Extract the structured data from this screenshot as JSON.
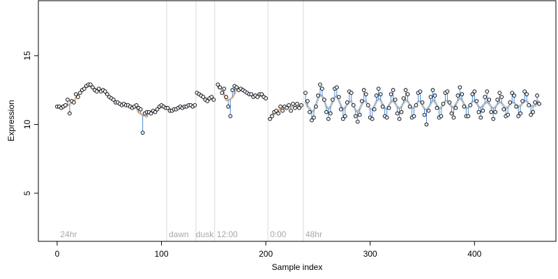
{
  "chart_data": {
    "type": "scatter",
    "xlabel": "Sample index",
    "ylabel": "Expression",
    "xlim": [
      -18,
      478
    ],
    "ylim": [
      1.5,
      19
    ],
    "x_ticks": [
      0,
      100,
      200,
      300,
      400
    ],
    "y_ticks": [
      5,
      10,
      15
    ],
    "grid": false,
    "phase_boundaries": [
      105,
      133,
      151,
      202,
      236
    ],
    "phase_labels": [
      {
        "text": "24hr",
        "x": 3
      },
      {
        "text": "dawn",
        "x": 107
      },
      {
        "text": "dusk",
        "x": 133
      },
      {
        "text": "12:00",
        "x": 153
      },
      {
        "text": "0:00",
        "x": 204
      },
      {
        "text": "48hr",
        "x": 238
      }
    ],
    "colors": {
      "point_fill": "#e8eff7",
      "point_stroke": "#000000",
      "fit_line": "#e8a060",
      "fit_line_alt": "#9aa7b0",
      "residual": "#4a8ad8",
      "boundary": "#d9d9d9",
      "phase_text": "#a8a8a8"
    },
    "series": [
      {
        "x": [
          0,
          2,
          4,
          6,
          8,
          10,
          12,
          14,
          16,
          18,
          20,
          22,
          24,
          26,
          28,
          30,
          32,
          34,
          36,
          38,
          40,
          42,
          44,
          46,
          48,
          50,
          52,
          54,
          56,
          58,
          60,
          62,
          64,
          66,
          68,
          70,
          72,
          74,
          76,
          78,
          80,
          82,
          84,
          86,
          88,
          90,
          92,
          94,
          96,
          98,
          100,
          102,
          104,
          106,
          108,
          110,
          112,
          114,
          116,
          118,
          120,
          122,
          124,
          126,
          128,
          130,
          132
        ],
        "y": [
          11.3,
          11.3,
          11.2,
          11.3,
          11.4,
          11.8,
          10.8,
          11.7,
          11.6,
          12.2,
          12.0,
          12.3,
          12.5,
          12.6,
          12.8,
          12.9,
          12.9,
          12.7,
          12.5,
          12.4,
          12.6,
          12.4,
          12.5,
          12.4,
          12.2,
          12.0,
          11.9,
          11.8,
          11.6,
          11.6,
          11.5,
          11.4,
          11.5,
          11.4,
          11.4,
          11.3,
          11.2,
          11.3,
          11.4,
          11.2,
          11.1,
          9.4,
          10.8,
          10.9,
          10.9,
          10.8,
          11.0,
          10.9,
          11.1,
          11.3,
          11.4,
          11.3,
          11.2,
          11.2,
          11.0,
          11.0,
          11.1,
          11.1,
          11.2,
          11.3,
          11.2,
          11.3,
          11.3,
          11.4,
          11.4,
          11.3,
          11.4
        ]
      },
      {
        "x": [
          134,
          136,
          138,
          140,
          142,
          144,
          146,
          148,
          150
        ],
        "y": [
          12.3,
          12.2,
          12.1,
          12.0,
          11.8,
          11.7,
          11.9,
          12.0,
          11.8
        ]
      },
      {
        "x": [
          154,
          156,
          158,
          160,
          162,
          164,
          166,
          168,
          170,
          172,
          174,
          176,
          178,
          180,
          182,
          184,
          186,
          188,
          190,
          192,
          194,
          196,
          198,
          200
        ],
        "y": [
          12.9,
          12.7,
          12.3,
          12.6,
          12.0,
          11.3,
          10.6,
          12.5,
          12.8,
          12.7,
          12.5,
          12.6,
          12.5,
          12.4,
          12.3,
          12.2,
          12.2,
          12.0,
          12.1,
          12.0,
          12.2,
          12.2,
          12.0,
          11.9
        ]
      },
      {
        "x": [
          204,
          206,
          208,
          210,
          212,
          214,
          216,
          218,
          220,
          222,
          224,
          226,
          228,
          230,
          232,
          234
        ],
        "y": [
          10.4,
          10.6,
          10.9,
          11.0,
          10.8,
          11.3,
          11.0,
          11.3,
          11.2,
          11.4,
          11.0,
          11.5,
          11.2,
          11.5,
          11.2,
          11.4
        ]
      },
      {
        "x": [
          238,
          240,
          242,
          244,
          246,
          248,
          250,
          252,
          254,
          256,
          258,
          260,
          262,
          264,
          266,
          268,
          270,
          272,
          274,
          276,
          278,
          280,
          282,
          284,
          286,
          288,
          290,
          292,
          294,
          296,
          298,
          300,
          302,
          304,
          306,
          308,
          310,
          312,
          314,
          316,
          318,
          320,
          322,
          324,
          326,
          328,
          330,
          332,
          334,
          336,
          338,
          340,
          342,
          344,
          346,
          348,
          350,
          352,
          354,
          356,
          358,
          360,
          362,
          364,
          366,
          368,
          370,
          372,
          374,
          376,
          378,
          380,
          382,
          384,
          386,
          388,
          390,
          392,
          394,
          396,
          398,
          400,
          402,
          404,
          406,
          408,
          410,
          412,
          414,
          416,
          418,
          420,
          422,
          424,
          426,
          428,
          430,
          432,
          434,
          436,
          438,
          440,
          442,
          444,
          446,
          448,
          450,
          452,
          454,
          456,
          458,
          460,
          462
        ],
        "y": [
          12.3,
          11.7,
          10.9,
          10.3,
          10.5,
          11.3,
          12.1,
          12.9,
          12.6,
          11.8,
          10.9,
          10.4,
          10.8,
          11.8,
          12.6,
          12.7,
          12.0,
          11.1,
          10.4,
          10.6,
          11.6,
          12.4,
          12.3,
          11.4,
          10.6,
          10.2,
          10.7,
          11.7,
          12.5,
          12.2,
          11.4,
          10.5,
          10.4,
          11.1,
          12.1,
          12.6,
          12.2,
          11.3,
          10.6,
          10.5,
          11.2,
          12.2,
          12.5,
          11.8,
          10.8,
          10.4,
          10.9,
          11.9,
          12.5,
          12.2,
          11.3,
          10.5,
          10.6,
          11.4,
          12.3,
          12.4,
          11.6,
          10.7,
          10.0,
          11.0,
          12.0,
          12.5,
          12.1,
          11.2,
          10.5,
          10.6,
          11.5,
          12.3,
          12.4,
          11.6,
          10.8,
          10.5,
          11.2,
          12.1,
          12.7,
          12.2,
          11.3,
          10.6,
          10.6,
          11.4,
          12.2,
          12.4,
          11.7,
          10.9,
          10.5,
          11.0,
          12.0,
          12.4,
          11.8,
          10.9,
          10.4,
          10.9,
          11.8,
          12.3,
          12.0,
          11.1,
          10.6,
          10.7,
          11.6,
          12.3,
          12.1,
          11.3,
          10.6,
          10.8,
          11.7,
          12.4,
          12.2,
          11.4,
          10.7,
          10.9,
          11.6,
          12.1,
          11.5
        ]
      }
    ]
  }
}
